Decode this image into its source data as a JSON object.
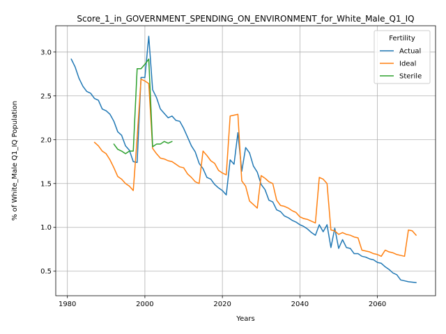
{
  "chart_data": {
    "type": "line",
    "title": "Score_1_in_GOVERNMENT_SPENDING_ON_ENVIRONMENT_for_White_Male_Q1_IQ",
    "xlabel": "Years",
    "ylabel": "% of White_Male Q1_IQ Population",
    "xlim": [
      1977,
      2075
    ],
    "ylim": [
      0.22,
      3.3
    ],
    "x_ticks": [
      1980,
      2000,
      2020,
      2040,
      2060
    ],
    "y_ticks": [
      0.5,
      1.0,
      1.5,
      2.0,
      2.5,
      3.0
    ],
    "grid": true,
    "legend": {
      "title": "Fertility",
      "position": "top-right"
    },
    "series": [
      {
        "name": "Actual",
        "color": "#1f77b4",
        "points": [
          [
            1981,
            2.92
          ],
          [
            1982,
            2.83
          ],
          [
            1983,
            2.7
          ],
          [
            1984,
            2.61
          ],
          [
            1985,
            2.55
          ],
          [
            1986,
            2.53
          ],
          [
            1987,
            2.47
          ],
          [
            1988,
            2.45
          ],
          [
            1989,
            2.35
          ],
          [
            1990,
            2.33
          ],
          [
            1991,
            2.29
          ],
          [
            1992,
            2.21
          ],
          [
            1993,
            2.09
          ],
          [
            1994,
            2.05
          ],
          [
            1995,
            1.93
          ],
          [
            1996,
            1.88
          ],
          [
            1997,
            1.75
          ],
          [
            1998,
            1.74
          ],
          [
            1999,
            2.71
          ],
          [
            2000,
            2.71
          ],
          [
            2001,
            3.18
          ],
          [
            2002,
            2.57
          ],
          [
            2003,
            2.48
          ],
          [
            2004,
            2.35
          ],
          [
            2005,
            2.3
          ],
          [
            2006,
            2.25
          ],
          [
            2007,
            2.27
          ],
          [
            2008,
            2.22
          ],
          [
            2009,
            2.21
          ],
          [
            2010,
            2.13
          ],
          [
            2011,
            2.03
          ],
          [
            2012,
            1.93
          ],
          [
            2013,
            1.86
          ],
          [
            2014,
            1.73
          ],
          [
            2015,
            1.67
          ],
          [
            2016,
            1.57
          ],
          [
            2017,
            1.55
          ],
          [
            2018,
            1.49
          ],
          [
            2019,
            1.45
          ],
          [
            2020,
            1.42
          ],
          [
            2021,
            1.37
          ],
          [
            2022,
            1.77
          ],
          [
            2023,
            1.72
          ],
          [
            2024,
            2.08
          ],
          [
            2025,
            1.64
          ],
          [
            2026,
            1.91
          ],
          [
            2027,
            1.85
          ],
          [
            2028,
            1.7
          ],
          [
            2029,
            1.63
          ],
          [
            2030,
            1.49
          ],
          [
            2031,
            1.43
          ],
          [
            2032,
            1.31
          ],
          [
            2033,
            1.29
          ],
          [
            2034,
            1.2
          ],
          [
            2035,
            1.18
          ],
          [
            2036,
            1.13
          ],
          [
            2037,
            1.11
          ],
          [
            2038,
            1.08
          ],
          [
            2039,
            1.06
          ],
          [
            2040,
            1.03
          ],
          [
            2041,
            1.01
          ],
          [
            2042,
            0.98
          ],
          [
            2043,
            0.94
          ],
          [
            2044,
            0.91
          ],
          [
            2045,
            1.03
          ],
          [
            2046,
            0.95
          ],
          [
            2047,
            1.03
          ],
          [
            2048,
            0.77
          ],
          [
            2049,
            0.99
          ],
          [
            2050,
            0.76
          ],
          [
            2051,
            0.86
          ],
          [
            2052,
            0.77
          ],
          [
            2053,
            0.76
          ],
          [
            2054,
            0.7
          ],
          [
            2055,
            0.7
          ],
          [
            2056,
            0.67
          ],
          [
            2057,
            0.66
          ],
          [
            2058,
            0.64
          ],
          [
            2059,
            0.63
          ],
          [
            2060,
            0.6
          ],
          [
            2061,
            0.59
          ],
          [
            2062,
            0.55
          ],
          [
            2063,
            0.52
          ],
          [
            2064,
            0.48
          ],
          [
            2065,
            0.46
          ],
          [
            2066,
            0.4
          ],
          [
            2067,
            0.39
          ],
          [
            2068,
            0.38
          ],
          [
            2069,
            0.375
          ],
          [
            2070,
            0.37
          ]
        ]
      },
      {
        "name": "Ideal",
        "color": "#ff7f0e",
        "points": [
          [
            1987,
            1.97
          ],
          [
            1988,
            1.93
          ],
          [
            1989,
            1.87
          ],
          [
            1990,
            1.84
          ],
          [
            1991,
            1.77
          ],
          [
            1992,
            1.68
          ],
          [
            1993,
            1.58
          ],
          [
            1994,
            1.55
          ],
          [
            1995,
            1.5
          ],
          [
            1996,
            1.47
          ],
          [
            1997,
            1.42
          ],
          [
            1998,
            2.02
          ],
          [
            1999,
            2.69
          ],
          [
            2000,
            2.67
          ],
          [
            2001,
            2.64
          ],
          [
            2002,
            1.9
          ],
          [
            2003,
            1.84
          ],
          [
            2004,
            1.79
          ],
          [
            2005,
            1.78
          ],
          [
            2006,
            1.76
          ],
          [
            2007,
            1.75
          ],
          [
            2008,
            1.72
          ],
          [
            2009,
            1.69
          ],
          [
            2010,
            1.68
          ],
          [
            2011,
            1.61
          ],
          [
            2012,
            1.57
          ],
          [
            2013,
            1.52
          ],
          [
            2014,
            1.5
          ],
          [
            2015,
            1.87
          ],
          [
            2016,
            1.82
          ],
          [
            2017,
            1.76
          ],
          [
            2018,
            1.73
          ],
          [
            2019,
            1.65
          ],
          [
            2020,
            1.62
          ],
          [
            2021,
            1.6
          ],
          [
            2022,
            2.27
          ],
          [
            2023,
            2.28
          ],
          [
            2024,
            2.29
          ],
          [
            2025,
            1.53
          ],
          [
            2026,
            1.47
          ],
          [
            2027,
            1.3
          ],
          [
            2028,
            1.26
          ],
          [
            2029,
            1.22
          ],
          [
            2030,
            1.59
          ],
          [
            2031,
            1.56
          ],
          [
            2032,
            1.52
          ],
          [
            2033,
            1.5
          ],
          [
            2034,
            1.31
          ],
          [
            2035,
            1.25
          ],
          [
            2036,
            1.24
          ],
          [
            2037,
            1.22
          ],
          [
            2038,
            1.19
          ],
          [
            2039,
            1.17
          ],
          [
            2040,
            1.12
          ],
          [
            2041,
            1.1
          ],
          [
            2042,
            1.09
          ],
          [
            2043,
            1.07
          ],
          [
            2044,
            1.05
          ],
          [
            2045,
            1.57
          ],
          [
            2046,
            1.55
          ],
          [
            2047,
            1.5
          ],
          [
            2048,
            0.97
          ],
          [
            2049,
            0.96
          ],
          [
            2050,
            0.92
          ],
          [
            2051,
            0.94
          ],
          [
            2052,
            0.92
          ],
          [
            2053,
            0.91
          ],
          [
            2054,
            0.89
          ],
          [
            2055,
            0.88
          ],
          [
            2056,
            0.74
          ],
          [
            2057,
            0.73
          ],
          [
            2058,
            0.72
          ],
          [
            2059,
            0.7
          ],
          [
            2060,
            0.69
          ],
          [
            2061,
            0.67
          ],
          [
            2062,
            0.74
          ],
          [
            2063,
            0.72
          ],
          [
            2064,
            0.71
          ],
          [
            2065,
            0.69
          ],
          [
            2066,
            0.68
          ],
          [
            2067,
            0.67
          ],
          [
            2068,
            0.97
          ],
          [
            2069,
            0.96
          ],
          [
            2070,
            0.91
          ]
        ]
      },
      {
        "name": "Sterile",
        "color": "#2ca02c",
        "points": [
          [
            1992,
            1.95
          ],
          [
            1993,
            1.89
          ],
          [
            1994,
            1.87
          ],
          [
            1995,
            1.84
          ],
          [
            1996,
            1.87
          ],
          [
            1997,
            1.87
          ],
          [
            1998,
            2.81
          ],
          [
            1999,
            2.81
          ],
          [
            2000,
            2.86
          ],
          [
            2001,
            2.92
          ],
          [
            2002,
            1.92
          ],
          [
            2003,
            1.95
          ],
          [
            2004,
            1.95
          ],
          [
            2005,
            1.98
          ],
          [
            2006,
            1.96
          ],
          [
            2007,
            1.98
          ]
        ]
      }
    ]
  }
}
